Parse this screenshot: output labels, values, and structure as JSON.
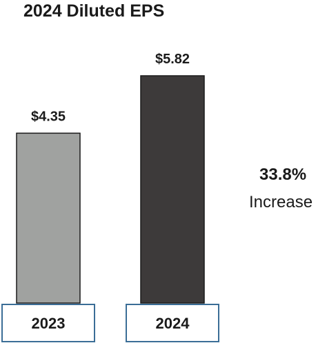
{
  "chart_data": {
    "type": "bar",
    "title": "2024 Diluted EPS",
    "categories": [
      "2023",
      "2024"
    ],
    "values": [
      4.35,
      5.82
    ],
    "data_labels": [
      "$4.35",
      "$5.82"
    ],
    "bar_colors": [
      "#a0a2a0",
      "#3d3a3a"
    ],
    "category_box_border_color": "#3a6d96",
    "xlabel": "",
    "ylabel": "",
    "grid": false,
    "legend": "none"
  },
  "annotation": {
    "change_percent": "33.8%",
    "change_label": "Increase"
  }
}
